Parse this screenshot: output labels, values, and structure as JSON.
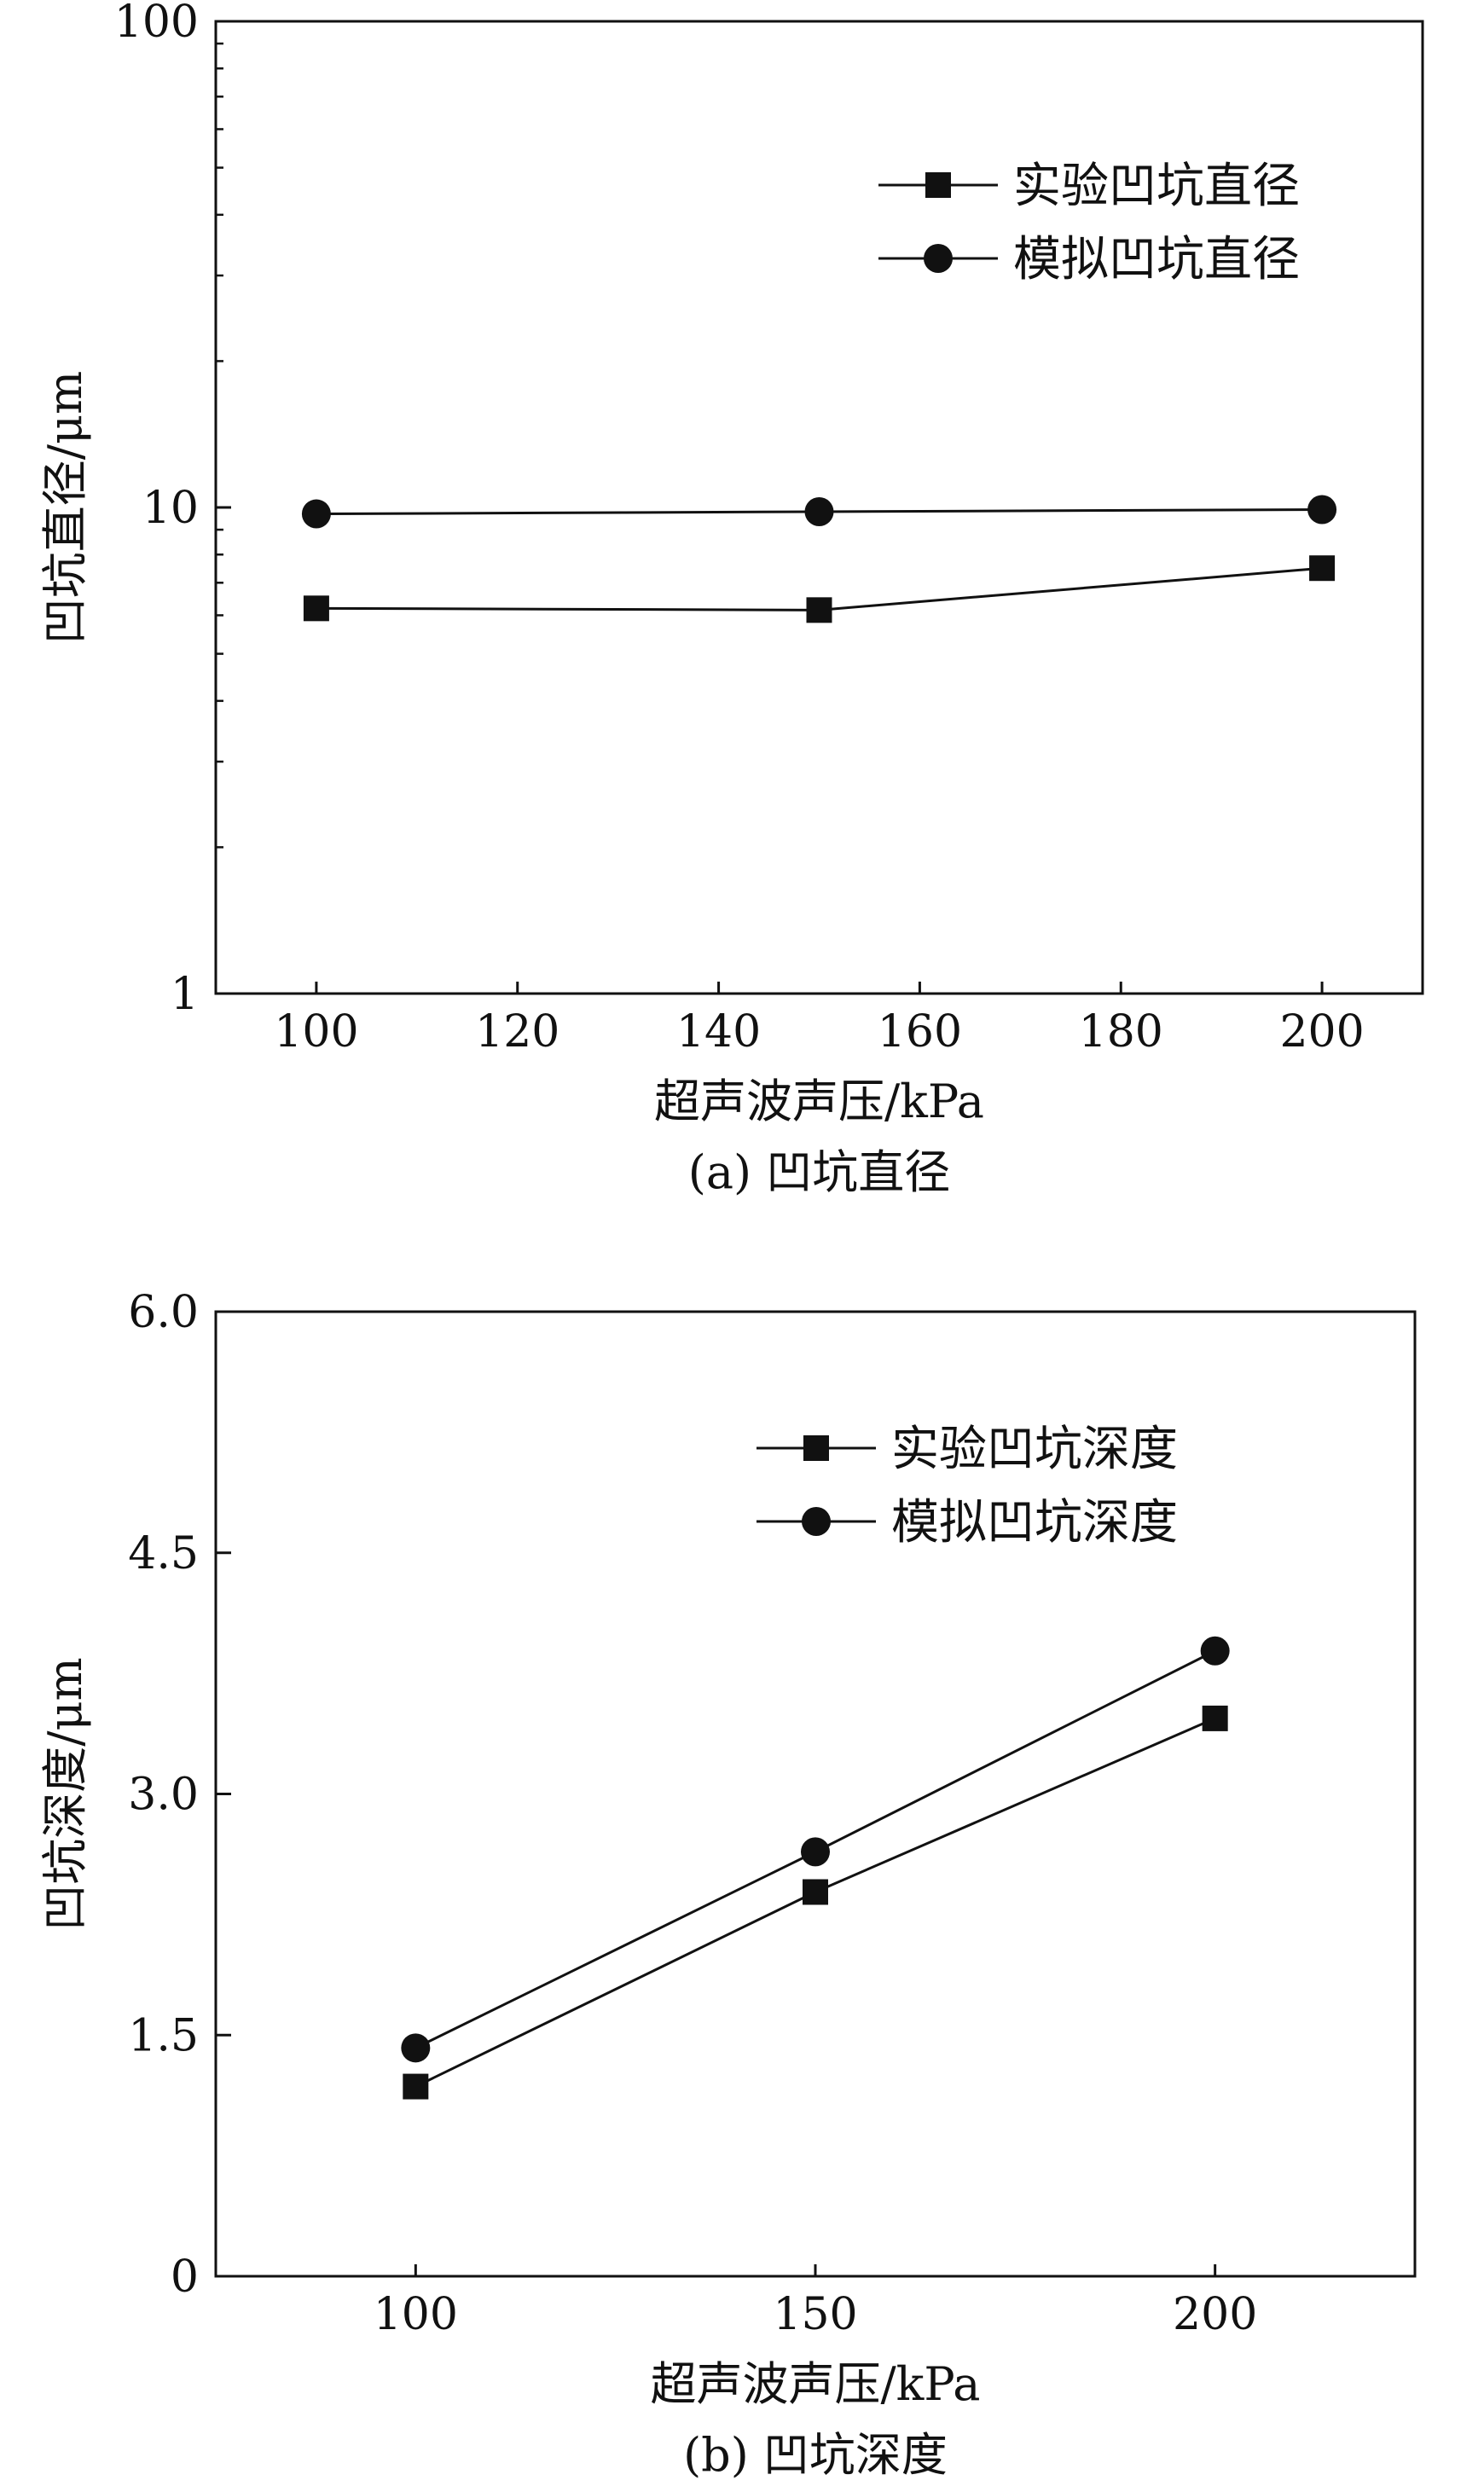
{
  "chart_data": [
    {
      "type": "line",
      "title": "",
      "caption": "(a) 凹坑直径",
      "xlabel": "超声波声压/kPa",
      "ylabel": "凹坑直径/μm",
      "xlim": [
        90,
        210
      ],
      "ylim": [
        1,
        100
      ],
      "yscale": "log",
      "xticks": [
        100,
        120,
        140,
        160,
        180,
        200
      ],
      "yticks": [
        1,
        10,
        100
      ],
      "grid": false,
      "legend_position": "top-right",
      "x": [
        100,
        150,
        200
      ],
      "series": [
        {
          "name": "实验凹坑直径",
          "marker": "square",
          "values": [
            6.2,
            6.15,
            7.5
          ]
        },
        {
          "name": "模拟凹坑直径",
          "marker": "circle",
          "values": [
            9.7,
            9.8,
            9.9
          ]
        }
      ]
    },
    {
      "type": "line",
      "title": "",
      "caption": "(b) 凹坑深度",
      "xlabel": "超声波声压/kPa",
      "ylabel": "凹坑深度/μm",
      "xlim": [
        75,
        225
      ],
      "ylim": [
        0,
        6
      ],
      "yscale": "linear",
      "xticks": [
        100,
        150,
        200
      ],
      "yticks": [
        0,
        1.5,
        3.0,
        4.5,
        6.0
      ],
      "ytick_labels": [
        "0",
        "1.5",
        "3.0",
        "4.5",
        "6.0"
      ],
      "grid": false,
      "legend_position": "top-right",
      "x": [
        100,
        150,
        200
      ],
      "series": [
        {
          "name": "实验凹坑深度",
          "marker": "square",
          "values": [
            1.18,
            2.39,
            3.47
          ]
        },
        {
          "name": "模拟凹坑深度",
          "marker": "circle",
          "values": [
            1.42,
            2.64,
            3.89
          ]
        }
      ]
    }
  ],
  "colors": {
    "ink": "#111111",
    "background": "#ffffff"
  }
}
